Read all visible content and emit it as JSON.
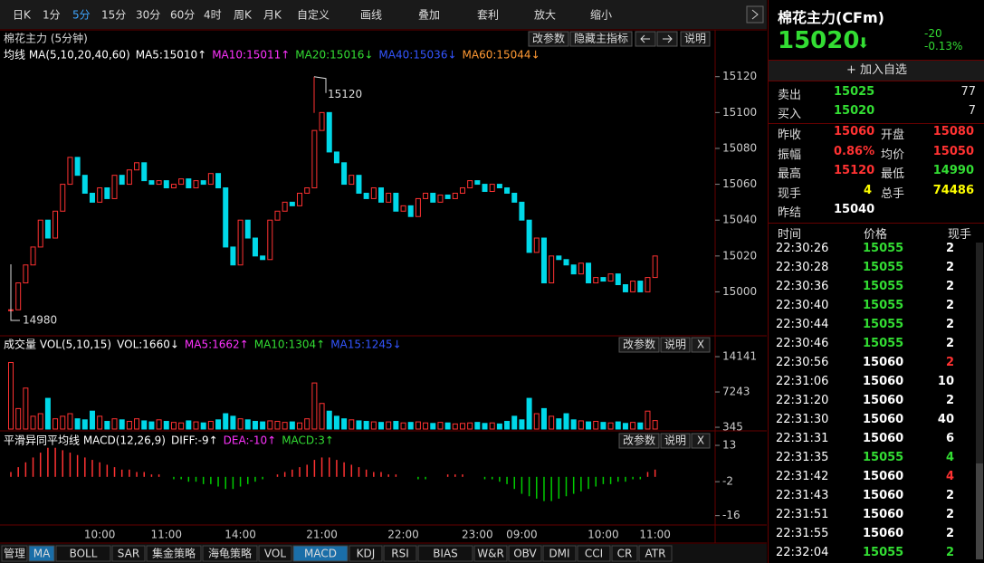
{
  "toolbar": [
    "日K",
    "1分",
    "5分",
    "15分",
    "30分",
    "60分",
    "4时",
    "周K",
    "月K",
    "自定义",
    "画线",
    "叠加",
    "套利",
    "放大",
    "缩小"
  ],
  "price_header": {
    "title": "棉花主力 (5分钟)",
    "buttons": [
      "改参数",
      "隐藏主指标",
      "说明"
    ],
    "legend": [
      {
        "text": "均线 MA(5,10,20,40,60)",
        "color": "#ffffff"
      },
      {
        "text": "MA5:15010↑",
        "color": "#ffffff"
      },
      {
        "text": "MA10:15011↑",
        "color": "#ff33ff"
      },
      {
        "text": "MA20:15016↓",
        "color": "#33dd33"
      },
      {
        "text": "MA40:15036↓",
        "color": "#3355ff"
      },
      {
        "text": "MA60:15044↓",
        "color": "#ff9933"
      }
    ]
  },
  "volume_header": {
    "legend": [
      {
        "text": "成交量 VOL(5,10,15)",
        "color": "#ffffff"
      },
      {
        "text": "VOL:1660↓",
        "color": "#ffffff"
      },
      {
        "text": "MA5:1662↑",
        "color": "#ff33ff"
      },
      {
        "text": "MA10:1304↑",
        "color": "#33dd33"
      },
      {
        "text": "MA15:1245↓",
        "color": "#3355ff"
      }
    ],
    "buttons": [
      "改参数",
      "说明",
      "X"
    ]
  },
  "macd_header": {
    "legend": [
      {
        "text": "平滑异同平均线 MACD(12,26,9)",
        "color": "#ffffff"
      },
      {
        "text": "DIFF:-9↑",
        "color": "#ffffff"
      },
      {
        "text": "DEA:-10↑",
        "color": "#ff33ff"
      },
      {
        "text": "MACD:3↑",
        "color": "#33dd33"
      }
    ],
    "buttons": [
      "改参数",
      "说明",
      "X"
    ]
  },
  "chart_data": [
    {
      "type": "candle",
      "categories": [
        null,
        null,
        null,
        null,
        null,
        null,
        null,
        null,
        null,
        null,
        null,
        null,
        "10:00",
        null,
        null,
        null,
        null,
        null,
        null,
        null,
        null,
        "11:00",
        null,
        null,
        null,
        null,
        null,
        null,
        null,
        null,
        null,
        "14:00",
        null,
        null,
        null,
        null,
        null,
        null,
        null,
        null,
        null,
        null,
        "21:00",
        null,
        null,
        null,
        null,
        null,
        null,
        null,
        null,
        null,
        null,
        "22:00",
        null,
        null,
        null,
        null,
        null,
        null,
        null,
        null,
        null,
        "23:00",
        null,
        null,
        null,
        null,
        null,
        "09:00",
        null,
        null,
        null,
        null,
        null,
        null,
        null,
        null,
        null,
        null,
        "10:00",
        null,
        null,
        null,
        null,
        null,
        null,
        "11:00"
      ],
      "values": [
        14990,
        15005,
        15015,
        15025,
        15040,
        15030,
        15045,
        15060,
        15075,
        15065,
        15055,
        15050,
        15058,
        15052,
        15065,
        15060,
        15068,
        15072,
        15062,
        15060,
        15062,
        15058,
        15060,
        15063,
        15058,
        15062,
        15060,
        15066,
        15058,
        15025,
        15015,
        15040,
        15030,
        15020,
        15018,
        15040,
        15045,
        15050,
        15048,
        15055,
        15058,
        15090,
        15100,
        15078,
        15072,
        15060,
        15065,
        15055,
        15052,
        15058,
        15050,
        15055,
        15045,
        15048,
        15042,
        15052,
        15055,
        15050,
        15054,
        15052,
        15055,
        15058,
        15062,
        15060,
        15056,
        15060,
        15058,
        15055,
        15050,
        15040,
        15022,
        15030,
        15005,
        15020,
        15018,
        15015,
        15010,
        15016,
        15005,
        15008,
        15006,
        15010,
        15004,
        15000,
        15006,
        15000,
        15008,
        15020
      ],
      "ylim": [
        14977,
        15135
      ],
      "yticks": [
        15000,
        15020,
        15040,
        15060,
        15080,
        15100,
        15120
      ],
      "annotations": [
        15120,
        14980
      ],
      "up_color": "#ff3232",
      "down_color": "#00d8e8"
    },
    {
      "type": "bar",
      "values": [
        13000,
        4000,
        8000,
        2500,
        3000,
        6000,
        2000,
        2500,
        3000,
        2000,
        1800,
        3500,
        2500,
        1500,
        2000,
        1800,
        1500,
        2000,
        1600,
        1400,
        1800,
        1500,
        1300,
        1200,
        1600,
        1400,
        1200,
        1500,
        1800,
        3000,
        2500,
        2000,
        1800,
        1500,
        1400,
        1600,
        1500,
        1300,
        1400,
        1200,
        2000,
        9000,
        5000,
        3500,
        2500,
        2000,
        1800,
        1600,
        1500,
        1400,
        1300,
        1400,
        1500,
        1200,
        1300,
        1400,
        1200,
        1100,
        1300,
        1200,
        1000,
        1100,
        1200,
        1300,
        1100,
        1200,
        1000,
        1500,
        2500,
        1800,
        6000,
        3000,
        4000,
        2500,
        2000,
        3000,
        1800,
        1600,
        1400,
        1500,
        1300,
        1200,
        1400,
        1100,
        1300,
        1200,
        3500,
        1660
      ],
      "ylim": [
        0,
        14500
      ],
      "yticks": [
        345,
        7243,
        14141
      ]
    },
    {
      "type": "bar",
      "values": [
        2,
        4,
        6,
        8,
        10,
        12,
        12,
        11,
        10,
        9,
        8,
        7,
        6,
        5,
        4,
        3,
        3,
        2,
        2,
        1,
        1,
        0,
        -1,
        -1,
        -2,
        -2,
        -3,
        -3,
        -4,
        -5,
        -5,
        -4,
        -3,
        -2,
        -1,
        0,
        1,
        2,
        3,
        4,
        5,
        7,
        8,
        8,
        7,
        6,
        5,
        4,
        3,
        2,
        2,
        1,
        1,
        0,
        0,
        -1,
        -1,
        0,
        0,
        1,
        1,
        1,
        0,
        0,
        -1,
        -1,
        -2,
        -3,
        -5,
        -7,
        -8,
        -9,
        -10,
        -10,
        -9,
        -8,
        -7,
        -6,
        -5,
        -4,
        -3,
        -3,
        -2,
        -2,
        -1,
        -1,
        2,
        3
      ],
      "ylim": [
        -18,
        16
      ],
      "yticks": [
        -16,
        -2,
        13
      ],
      "up_color": "#ff3232",
      "down_color": "#00cc00"
    }
  ],
  "tabs": [
    "管理",
    "MA",
    "BOLL",
    "SAR",
    "集金策略",
    "海龟策略",
    "VOL",
    "MACD",
    "KDJ",
    "RSI",
    "BIAS",
    "W&R",
    "OBV",
    "DMI",
    "CCI",
    "CR",
    "ATR"
  ],
  "quote": {
    "name": "棉花主力(CFm)",
    "price": 15020,
    "arrow": "⬇",
    "change": -20,
    "change_pct": "-0.13%",
    "add": "+ 加入自选",
    "book": [
      [
        "卖出",
        15025,
        77
      ],
      [
        "买入",
        15020,
        7
      ]
    ],
    "stats": [
      [
        "昨收",
        15060,
        "#ff3232",
        "开盘",
        15080,
        "#ff3232"
      ],
      [
        "振幅",
        "0.86%",
        "#ff3232",
        "均价",
        15050,
        "#ff3232"
      ],
      [
        "最高",
        15120,
        "#ff3232",
        "最低",
        14990,
        "#33dd33"
      ],
      [
        "现手",
        4,
        "#ffff00",
        "总手",
        74486,
        "#ffff00"
      ],
      [
        "昨结",
        15040,
        "#ffffff"
      ]
    ]
  },
  "trades": {
    "header": [
      "时间",
      "价格",
      "现手"
    ],
    "rows": [
      [
        "22:30:26",
        15055,
        2,
        "#33dd33",
        "#ffffff"
      ],
      [
        "22:30:28",
        15055,
        2,
        "#33dd33",
        "#ffffff"
      ],
      [
        "22:30:36",
        15055,
        2,
        "#33dd33",
        "#ffffff"
      ],
      [
        "22:30:40",
        15055,
        2,
        "#33dd33",
        "#ffffff"
      ],
      [
        "22:30:44",
        15055,
        2,
        "#33dd33",
        "#ffffff"
      ],
      [
        "22:30:46",
        15055,
        2,
        "#33dd33",
        "#ffffff"
      ],
      [
        "22:30:56",
        15060,
        2,
        "#ffffff",
        "#ff3232"
      ],
      [
        "22:31:06",
        15060,
        10,
        "#ffffff",
        "#ffffff"
      ],
      [
        "22:31:20",
        15060,
        2,
        "#ffffff",
        "#ffffff"
      ],
      [
        "22:31:30",
        15060,
        40,
        "#ffffff",
        "#ffffff"
      ],
      [
        "22:31:31",
        15060,
        6,
        "#ffffff",
        "#ffffff"
      ],
      [
        "22:31:35",
        15055,
        4,
        "#33dd33",
        "#33dd33"
      ],
      [
        "22:31:42",
        15060,
        4,
        "#ffffff",
        "#ff3232"
      ],
      [
        "22:31:43",
        15060,
        2,
        "#ffffff",
        "#ffffff"
      ],
      [
        "22:31:51",
        15060,
        2,
        "#ffffff",
        "#ffffff"
      ],
      [
        "22:31:55",
        15060,
        2,
        "#ffffff",
        "#ffffff"
      ],
      [
        "22:32:04",
        15055,
        2,
        "#33dd33",
        "#33dd33"
      ]
    ]
  }
}
